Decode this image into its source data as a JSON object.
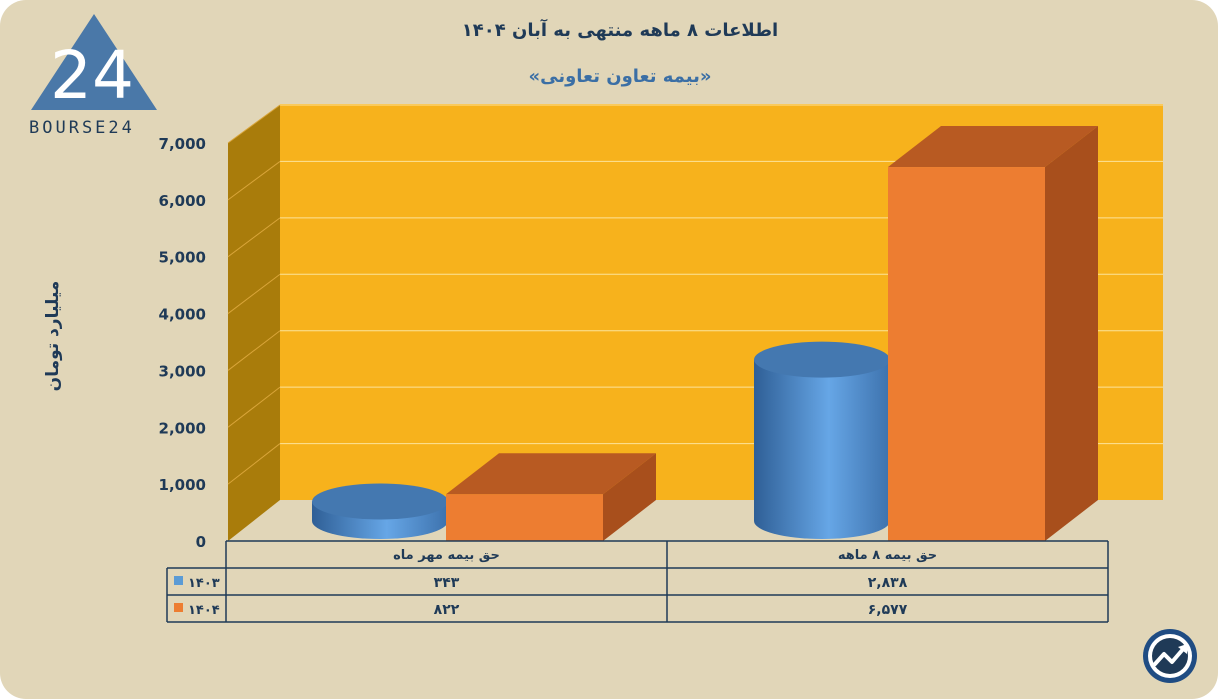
{
  "header": {
    "title": "اطلاعات ۸ ماهه منتهی به آبان ۱۴۰۴",
    "subtitle": "«بیمه تعاون تعاونی»"
  },
  "logo": {
    "text": "BOURSE24",
    "mark": "24"
  },
  "corner_icon": "trend-chart-icon",
  "colors": {
    "background": "#e1d6b8",
    "plot_back": "#f7b21c",
    "plot_side": "#a97c0b",
    "series_1403": "#5b9bd5",
    "series_1404": "#ed7d31",
    "text": "#1f3a57"
  },
  "chart_data": {
    "type": "bar",
    "title": "اطلاعات ۸ ماهه منتهی به آبان ۱۴۰۴",
    "subtitle": "«بیمه تعاون تعاونی»",
    "ylabel": "میلیارد تومان",
    "xlabel": "",
    "ylim": [
      0,
      7000
    ],
    "yticks": [
      0,
      1000,
      2000,
      3000,
      4000,
      5000,
      6000,
      7000
    ],
    "ytick_labels": [
      "0",
      "1,000",
      "2,000",
      "3,000",
      "4,000",
      "5,000",
      "6,000",
      "7,000"
    ],
    "categories": [
      "حق بیمه ۸ ماهه",
      "حق بیمه مهر ماه"
    ],
    "series": [
      {
        "name": "۱۴۰۳",
        "shape": "cylinder",
        "values": [
          2838,
          343
        ],
        "labels": [
          "۲,۸۳۸",
          "۳۴۳"
        ]
      },
      {
        "name": "۱۴۰۴",
        "shape": "box",
        "values": [
          6577,
          822
        ],
        "labels": [
          "۶,۵۷۷",
          "۸۲۲"
        ]
      }
    ],
    "grid": true,
    "legend": "data-table"
  }
}
